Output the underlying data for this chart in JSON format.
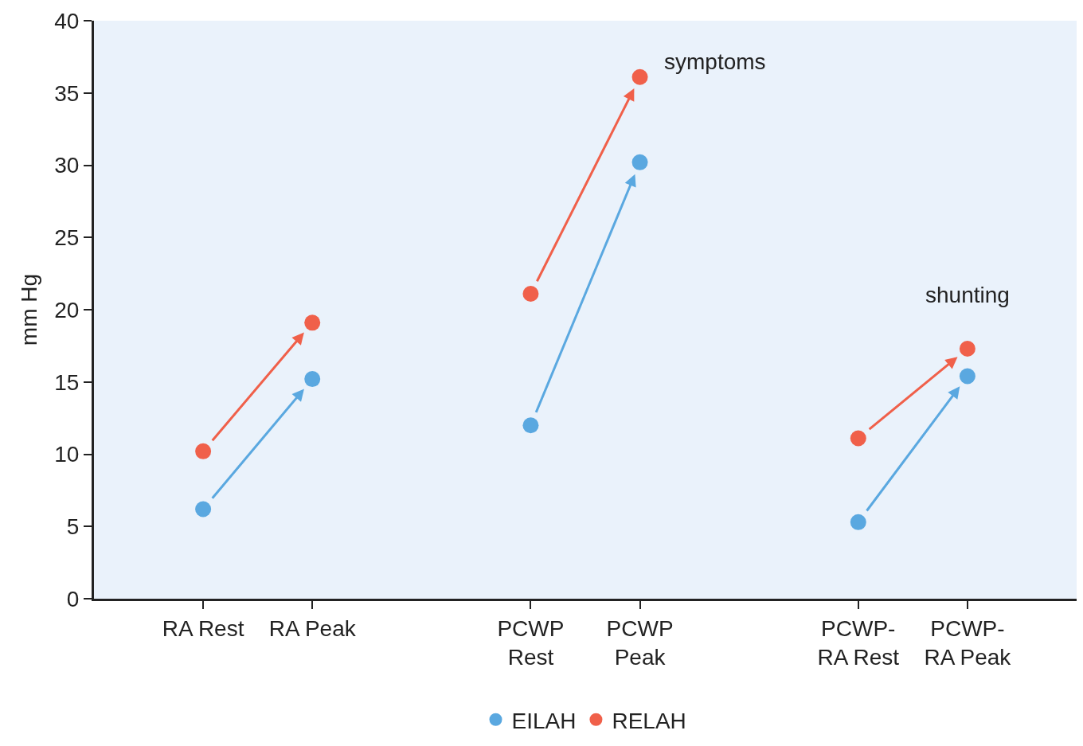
{
  "chart_data": {
    "type": "scatter",
    "ylabel": "mm Hg",
    "categories": [
      "RA Rest",
      "RA Peak",
      null,
      "PCWP Rest",
      "PCWP Peak",
      null,
      "PCWP-RA Rest",
      "PCWP-RA Peak"
    ],
    "series": [
      {
        "name": "EILAH",
        "color": "#5aa8e0",
        "values": [
          6.2,
          15.2,
          null,
          12.0,
          30.2,
          null,
          5.3,
          15.4
        ]
      },
      {
        "name": "RELAH",
        "color": "#f0604a",
        "values": [
          10.2,
          19.1,
          null,
          21.1,
          36.1,
          null,
          11.1,
          17.3
        ]
      }
    ],
    "ylim": [
      0,
      40
    ],
    "yticks": [
      0,
      5,
      10,
      15,
      20,
      25,
      30,
      35,
      40
    ],
    "annotations": [
      {
        "text": "symptoms",
        "x": "PCWP Peak",
        "y": 36.1
      },
      {
        "text": "shunting",
        "x": "PCWP-RA Peak",
        "y": 17.3
      }
    ],
    "grid": false,
    "legend": "bottom",
    "marker": "circle"
  }
}
